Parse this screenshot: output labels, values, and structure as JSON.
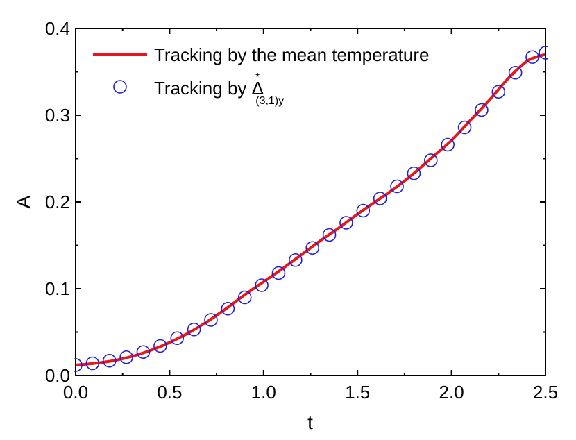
{
  "chart_data": {
    "type": "line",
    "xlabel": "t",
    "ylabel": "A",
    "xlim": [
      0.0,
      2.5
    ],
    "ylim": [
      0.0,
      0.4
    ],
    "xticks": [
      "0.0",
      "0.5",
      "1.0",
      "1.5",
      "2.0",
      "2.5"
    ],
    "yticks": [
      "0.0",
      "0.1",
      "0.2",
      "0.3",
      "0.4"
    ],
    "grid": false,
    "legend_position": "top-left",
    "series": [
      {
        "name": "Tracking by the mean temperature",
        "style": "line",
        "color": "#e8161b",
        "x": [
          0.0,
          0.1,
          0.2,
          0.3,
          0.4,
          0.5,
          0.6,
          0.7,
          0.8,
          0.9,
          1.0,
          1.1,
          1.2,
          1.3,
          1.4,
          1.5,
          1.6,
          1.7,
          1.8,
          1.9,
          2.0,
          2.1,
          2.2,
          2.3,
          2.4,
          2.45,
          2.5
        ],
        "y": [
          0.012,
          0.014,
          0.017,
          0.022,
          0.029,
          0.038,
          0.049,
          0.062,
          0.077,
          0.093,
          0.108,
          0.123,
          0.139,
          0.155,
          0.17,
          0.186,
          0.201,
          0.216,
          0.233,
          0.252,
          0.271,
          0.294,
          0.317,
          0.342,
          0.362,
          0.367,
          0.37
        ]
      },
      {
        "name": "Tracking by Δ*(3,1)y",
        "label_main": "Tracking by Δ",
        "label_sup": "*",
        "label_sub": "(3,1)y",
        "style": "markers",
        "marker": "open-circle",
        "color": "#1f1fd6",
        "x": [
          0.0,
          0.09,
          0.18,
          0.27,
          0.36,
          0.45,
          0.54,
          0.63,
          0.72,
          0.81,
          0.9,
          0.99,
          1.08,
          1.17,
          1.26,
          1.35,
          1.44,
          1.53,
          1.62,
          1.71,
          1.8,
          1.89,
          1.98,
          2.07,
          2.16,
          2.25,
          2.34,
          2.43,
          2.5
        ],
        "y": [
          0.012,
          0.014,
          0.017,
          0.021,
          0.027,
          0.034,
          0.043,
          0.053,
          0.064,
          0.077,
          0.09,
          0.104,
          0.118,
          0.133,
          0.147,
          0.162,
          0.176,
          0.19,
          0.204,
          0.218,
          0.233,
          0.248,
          0.266,
          0.286,
          0.306,
          0.327,
          0.349,
          0.367,
          0.372
        ]
      }
    ]
  }
}
